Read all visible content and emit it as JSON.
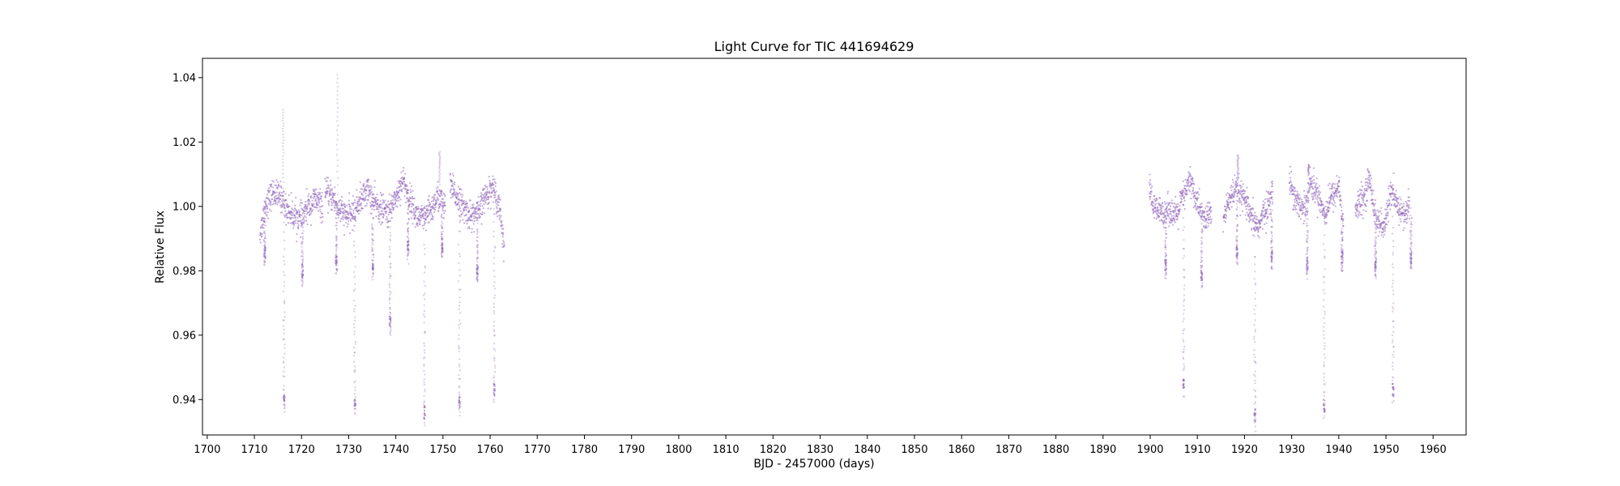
{
  "chart_data": {
    "type": "scatter",
    "title": "Light Curve for TIC 441694629",
    "xlabel": "BJD - 2457000 (days)",
    "ylabel": "Relative Flux",
    "xlim": [
      1699,
      1967
    ],
    "ylim": [
      0.929,
      1.046
    ],
    "xticks": [
      1700,
      1710,
      1720,
      1730,
      1740,
      1750,
      1760,
      1770,
      1780,
      1790,
      1800,
      1810,
      1820,
      1830,
      1840,
      1850,
      1860,
      1870,
      1880,
      1890,
      1900,
      1910,
      1920,
      1930,
      1940,
      1950,
      1960
    ],
    "yticks": [
      0.94,
      0.96,
      0.98,
      1.0,
      1.02,
      1.04
    ],
    "ytick_labels": [
      "0.94",
      "0.96",
      "0.98",
      "1.00",
      "1.02",
      "1.04"
    ],
    "grid": false,
    "marker_color": "#9467bd",
    "series": [
      {
        "segments": [
          {
            "x": [
              1711.2,
              1712.5,
              1714.0,
              1715.5,
              1717.0,
              1718.5,
              1720.0,
              1721.5,
              1723.0,
              1724.5
            ],
            "y": [
              0.992,
              1.001,
              1.004,
              1.003,
              0.999,
              0.997,
              0.996,
              1.0,
              1.002,
              1.0
            ]
          },
          {
            "x": [
              1725.0,
              1726.5,
              1728.0,
              1729.5,
              1731.0,
              1732.5,
              1734.0,
              1735.5,
              1737.0,
              1738.5,
              1740.0,
              1741.5,
              1743.0,
              1744.5,
              1746.0,
              1747.5,
              1749.0,
              1750.5
            ],
            "y": [
              1.004,
              1.003,
              0.999,
              0.997,
              0.998,
              1.002,
              1.005,
              1.001,
              0.999,
              0.998,
              1.003,
              1.008,
              1.002,
              0.997,
              0.996,
              0.999,
              1.003,
              1.0
            ]
          },
          {
            "x": [
              1751.5,
              1753.0,
              1754.5,
              1756.0,
              1757.5,
              1759.0,
              1760.5,
              1761.8,
              1763.0
            ],
            "y": [
              1.006,
              1.003,
              0.999,
              0.997,
              0.998,
              1.003,
              1.006,
              1.001,
              0.989
            ]
          },
          {
            "x": [
              1899.8,
              1901.0,
              1902.5,
              1904.0,
              1905.5,
              1907.0,
              1908.5,
              1910.0,
              1911.5,
              1913.0
            ],
            "y": [
              1.005,
              0.999,
              0.998,
              0.999,
              0.997,
              1.003,
              1.008,
              1.001,
              0.996,
              0.998
            ]
          },
          {
            "x": [
              1915.5,
              1917.0,
              1918.5,
              1920.0,
              1921.5,
              1923.0,
              1924.5,
              1926.0
            ],
            "y": [
              0.996,
              1.003,
              1.005,
              1.002,
              0.996,
              0.994,
              0.999,
              1.004
            ]
          },
          {
            "x": [
              1929.5,
              1931.0,
              1932.5,
              1934.0,
              1935.5,
              1937.0,
              1938.5,
              1940.0,
              1941.0
            ],
            "y": [
              1.008,
              1.002,
              0.999,
              1.007,
              1.004,
              0.998,
              1.003,
              1.006,
              0.994
            ]
          },
          {
            "x": [
              1943.5,
              1945.0,
              1946.5,
              1948.0,
              1949.5,
              1951.0,
              1952.5,
              1954.0,
              1955.0
            ],
            "y": [
              0.999,
              1.002,
              1.008,
              0.996,
              0.993,
              1.004,
              1.0,
              0.997,
              1.001
            ]
          }
        ],
        "noise": 0.0022,
        "dips": [
          {
            "x": 1712.2,
            "y": 0.982
          },
          {
            "x": 1716.3,
            "y": 0.936
          },
          {
            "x": 1720.2,
            "y": 0.976
          },
          {
            "x": 1727.4,
            "y": 0.979
          },
          {
            "x": 1731.3,
            "y": 0.935
          },
          {
            "x": 1735.1,
            "y": 0.978
          },
          {
            "x": 1738.8,
            "y": 0.96
          },
          {
            "x": 1742.6,
            "y": 0.984
          },
          {
            "x": 1746.1,
            "y": 0.932
          },
          {
            "x": 1749.8,
            "y": 0.984
          },
          {
            "x": 1753.5,
            "y": 0.935
          },
          {
            "x": 1757.3,
            "y": 0.976
          },
          {
            "x": 1760.9,
            "y": 0.939
          },
          {
            "x": 1903.3,
            "y": 0.978
          },
          {
            "x": 1907.1,
            "y": 0.941
          },
          {
            "x": 1910.9,
            "y": 0.975
          },
          {
            "x": 1918.4,
            "y": 0.982
          },
          {
            "x": 1922.2,
            "y": 0.931
          },
          {
            "x": 1925.8,
            "y": 0.98
          },
          {
            "x": 1933.3,
            "y": 0.978
          },
          {
            "x": 1936.9,
            "y": 0.934
          },
          {
            "x": 1940.7,
            "y": 0.98
          },
          {
            "x": 1947.8,
            "y": 0.978
          },
          {
            "x": 1951.5,
            "y": 0.939
          },
          {
            "x": 1955.3,
            "y": 0.98
          }
        ],
        "flares": [
          {
            "x": 1716.1,
            "y": 1.03
          },
          {
            "x": 1727.6,
            "y": 1.041
          },
          {
            "x": 1749.3,
            "y": 1.017
          },
          {
            "x": 1918.6,
            "y": 1.016
          },
          {
            "x": 1933.6,
            "y": 1.013
          }
        ]
      }
    ]
  }
}
